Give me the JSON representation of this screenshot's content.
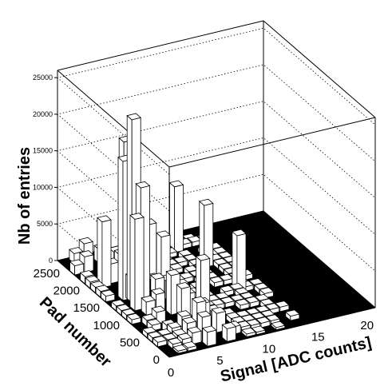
{
  "chart_data": {
    "type": "lego3d",
    "title": "",
    "xlabel": "Signal [ADC counts]",
    "ylabel": "Pad number",
    "zlabel": "Nb of entries",
    "x_ticks": [
      "0",
      "5",
      "10",
      "15",
      "20"
    ],
    "y_ticks": [
      "0",
      "500",
      "1000",
      "1500",
      "2000",
      "2500"
    ],
    "z_ticks": [
      "0",
      "5000",
      "10000",
      "15000",
      "20000",
      "25000"
    ],
    "xlim": [
      0,
      21
    ],
    "ylim": [
      0,
      2800
    ],
    "zlim": [
      0,
      26000
    ],
    "grid": true,
    "colors": {
      "bar_fill": "#ffffff",
      "bar_edge": "#000000",
      "floor": "#000000",
      "grid": "#000000"
    },
    "peak_bars": [
      {
        "x": 2.5,
        "y": 1500,
        "z": 25000
      },
      {
        "x": 2.5,
        "y": 1700,
        "z": 21000
      },
      {
        "x": 2.0,
        "y": 1600,
        "z": 19000
      },
      {
        "x": 3.0,
        "y": 1400,
        "z": 16000
      },
      {
        "x": 2.0,
        "y": 1300,
        "z": 12500
      },
      {
        "x": 3.5,
        "y": 1800,
        "z": 11000
      },
      {
        "x": 4.5,
        "y": 1600,
        "z": 9500
      },
      {
        "x": 1.5,
        "y": 2000,
        "z": 9000
      },
      {
        "x": 5.5,
        "y": 1500,
        "z": 8000
      },
      {
        "x": 7.5,
        "y": 1000,
        "z": 6500
      },
      {
        "x": 10.5,
        "y": 2400,
        "z": 9000
      },
      {
        "x": 11.5,
        "y": 1900,
        "z": 8500
      },
      {
        "x": 12.0,
        "y": 1200,
        "z": 7500
      }
    ]
  }
}
